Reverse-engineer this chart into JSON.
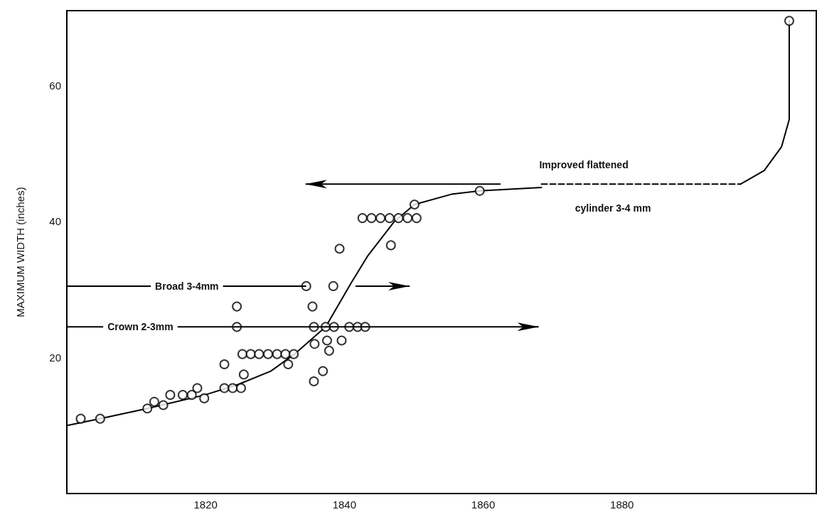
{
  "chart_data": {
    "type": "scatter",
    "ylabel": "MAXIMUM WIDTH (inches)",
    "xlim": [
      1800,
      1908
    ],
    "xticks": [
      1820,
      1840,
      1860,
      1880
    ],
    "ylim": [
      0,
      71
    ],
    "yticks": [
      20,
      40,
      60
    ],
    "grid": false,
    "series": [
      {
        "type": "line",
        "color": "#000000",
        "x": [
          1800,
          1804.7,
          1811.6,
          1819.9,
          1824.6,
          1829.4,
          1832.8,
          1835.6,
          1837.3,
          1841.0,
          1843.4,
          1847.2,
          1850.1,
          1855.4,
          1859.5,
          1868.4
        ],
        "values": [
          10,
          11,
          12.5,
          14.5,
          16,
          18,
          20.5,
          23,
          24.5,
          31,
          35,
          40,
          42.5,
          44,
          44.5,
          45
        ]
      },
      {
        "type": "line",
        "color": "#000000",
        "line_style": "dashed",
        "x": [
          1868.4,
          1897.1
        ],
        "values": [
          45.5,
          45.5
        ]
      },
      {
        "type": "line",
        "color": "#000000",
        "x": [
          1897.1,
          1900.5,
          1903.0,
          1904.1,
          1904.1
        ],
        "values": [
          45.5,
          47.5,
          51,
          55,
          69.5
        ]
      },
      {
        "color": "#000000",
        "marker": "circle",
        "x": [
          1802.0,
          1804.8,
          1811.6,
          1812.6,
          1813.9,
          1814.9,
          1816.7,
          1818.0,
          1818.8,
          1819.8,
          1822.7,
          1822.7,
          1823.9,
          1825.1,
          1824.5,
          1824.5,
          1825.5,
          1825.3,
          1826.5,
          1827.7,
          1829.0,
          1830.3,
          1831.5,
          1832.7,
          1831.9,
          1834.5,
          1838.4,
          1835.4,
          1835.6,
          1837.3,
          1838.5,
          1835.7,
          1837.5,
          1837.8,
          1836.9,
          1835.6,
          1839.6,
          1840.7,
          1841.9,
          1843.0,
          1842.6,
          1843.9,
          1845.2,
          1846.5,
          1847.8,
          1849.1,
          1850.4,
          1850.1,
          1859.5,
          1839.3,
          1846.7,
          1904.1
        ],
        "values": [
          11,
          11,
          12.5,
          13.5,
          13,
          14.5,
          14.5,
          14.5,
          15.5,
          14,
          19,
          15.5,
          15.5,
          15.5,
          27.5,
          24.5,
          17.5,
          20.5,
          20.5,
          20.5,
          20.5,
          20.5,
          20.5,
          20.5,
          19,
          30.5,
          30.5,
          27.5,
          24.5,
          24.5,
          24.5,
          22,
          22.5,
          21,
          18,
          16.5,
          22.5,
          24.5,
          24.5,
          24.5,
          40.5,
          40.5,
          40.5,
          40.5,
          40.5,
          40.5,
          40.5,
          42.5,
          44.5,
          36,
          36.5,
          69.5
        ]
      }
    ],
    "annotations": [
      "Broad  3-4mm",
      "Crown  2-3mm",
      "Improved  flattened",
      "cylinder  3-4 mm"
    ]
  }
}
